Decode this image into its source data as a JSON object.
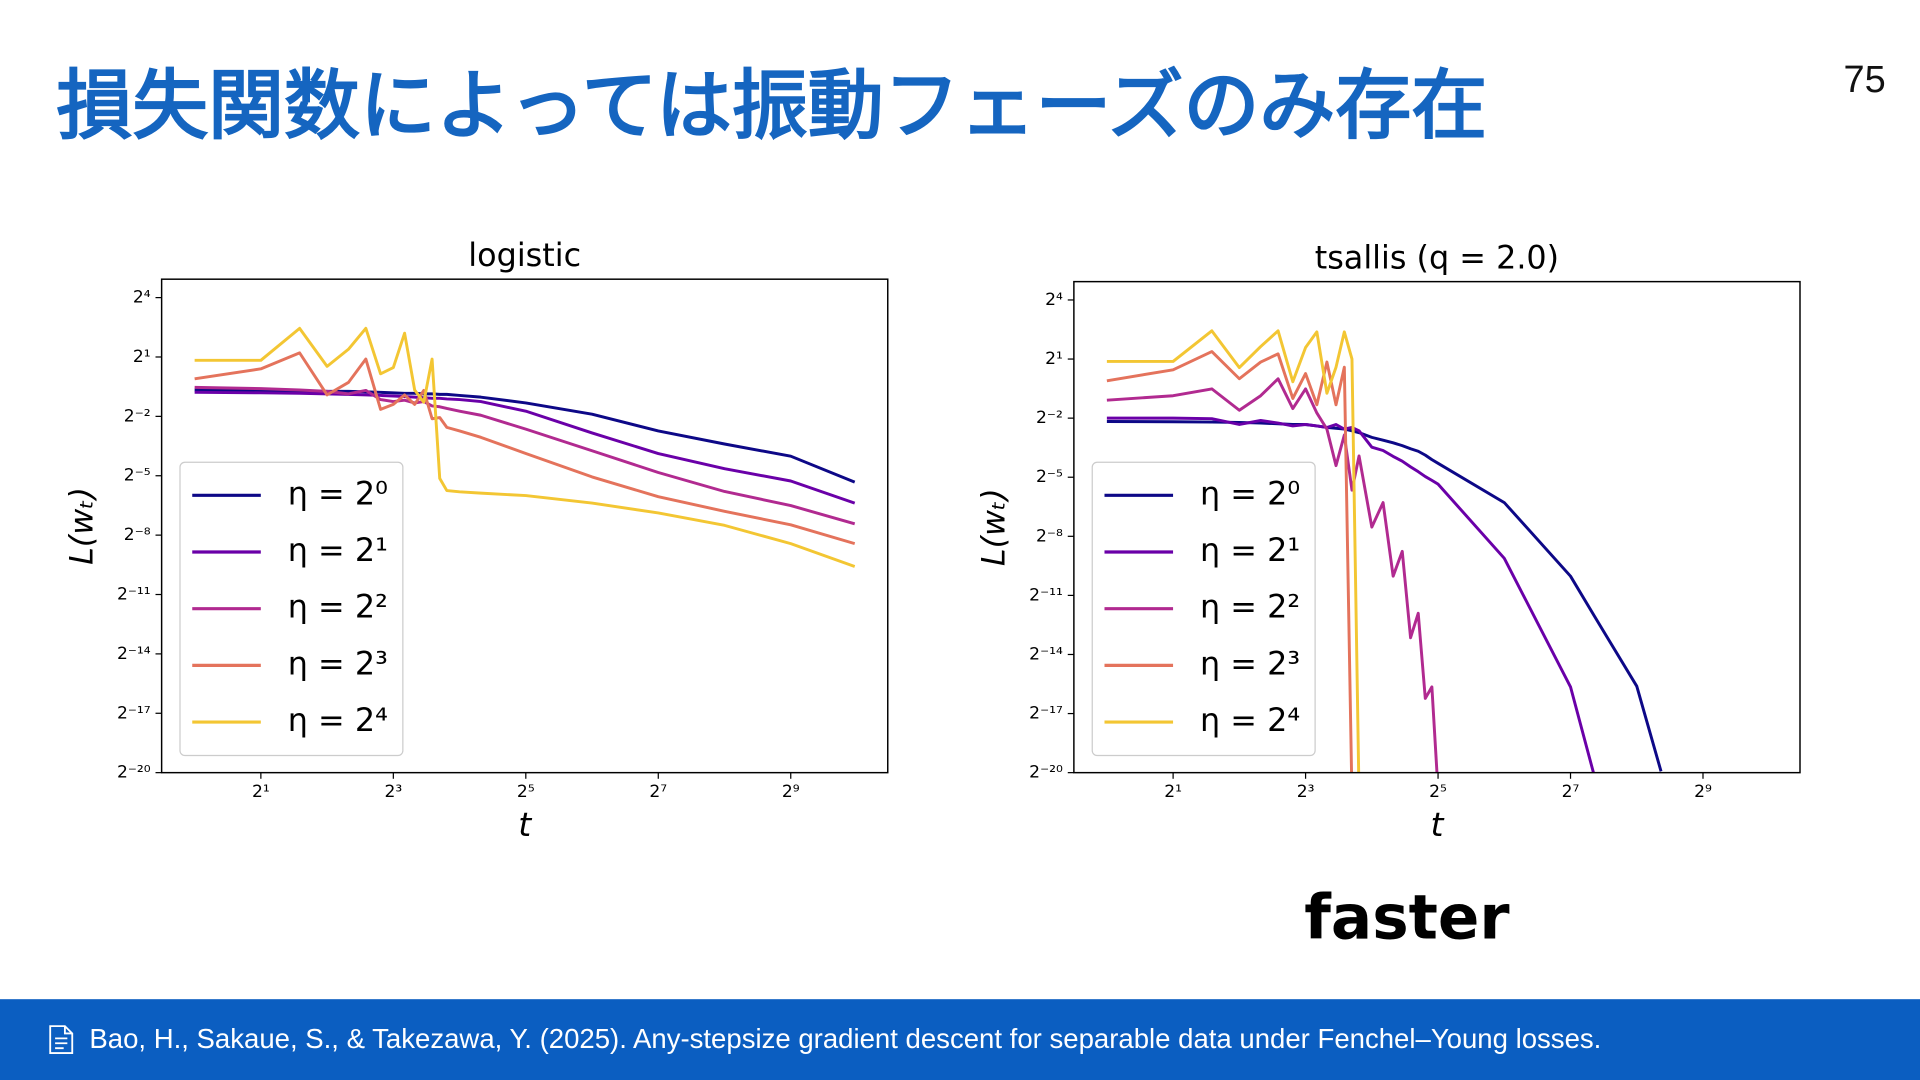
{
  "title": "損失関数によっては振動フェーズのみ存在",
  "page_number": 75,
  "annotation": "faster",
  "footer": "Bao, H., Sakaue, S., & Takezawa, Y. (2025). Any-stepsize gradient descent for separable data under Fenchel–Young losses.",
  "chart_data": [
    {
      "type": "line",
      "title": "logistic",
      "xlabel": "t",
      "ylabel": "L(wₜ)",
      "xscale": "log",
      "yscale": "log",
      "grid": false,
      "legend": "lower left",
      "xlim": [
        0.708,
        1413
      ],
      "ylim": [
        9.5367431640625e-07,
        30.5
      ],
      "xticks": [
        {
          "value": 2,
          "label": "2¹"
        },
        {
          "value": 8,
          "label": "2³"
        },
        {
          "value": 32,
          "label": "2⁵"
        },
        {
          "value": 128,
          "label": "2⁷"
        },
        {
          "value": 512,
          "label": "2⁹"
        }
      ],
      "yticks": [
        {
          "value": 16,
          "label": "2⁴"
        },
        {
          "value": 2,
          "label": "2¹"
        },
        {
          "value": 0.25,
          "label": "2⁻²"
        },
        {
          "value": 0.03125,
          "label": "2⁻⁵"
        },
        {
          "value": 0.00390625,
          "label": "2⁻⁸"
        },
        {
          "value": 0.00048828125,
          "label": "2⁻¹¹"
        },
        {
          "value": 6.103515625e-05,
          "label": "2⁻¹⁴"
        },
        {
          "value": 7.62939453125e-06,
          "label": "2⁻¹⁷"
        },
        {
          "value": 9.5367431640625e-07,
          "label": "2⁻²⁰"
        }
      ],
      "x": [
        1,
        2,
        3,
        4,
        5,
        6,
        7,
        8,
        9,
        10,
        11,
        12,
        13,
        14,
        16,
        20,
        32,
        64,
        128,
        256,
        512,
        1000
      ],
      "series": [
        {
          "name": "η = 2⁰",
          "color": "#0d0887",
          "values": [
            0.63,
            0.62,
            0.61,
            0.6,
            0.6,
            0.59,
            0.58,
            0.57,
            0.56,
            0.56,
            0.55,
            0.55,
            0.54,
            0.54,
            0.52,
            0.49,
            0.4,
            0.27,
            0.15,
            0.095,
            0.062,
            0.025
          ]
        },
        {
          "name": "η = 2¹",
          "color": "#6a00a8",
          "values": [
            0.58,
            0.57,
            0.56,
            0.55,
            0.54,
            0.53,
            0.52,
            0.51,
            0.5,
            0.49,
            0.48,
            0.47,
            0.47,
            0.46,
            0.45,
            0.42,
            0.3,
            0.14,
            0.068,
            0.04,
            0.026,
            0.012
          ]
        },
        {
          "name": "η = 2²",
          "color": "#b12a90",
          "values": [
            0.69,
            0.66,
            0.63,
            0.6,
            0.55,
            0.62,
            0.45,
            0.42,
            0.44,
            0.4,
            0.42,
            0.36,
            0.35,
            0.33,
            0.3,
            0.26,
            0.16,
            0.075,
            0.035,
            0.018,
            0.011,
            0.0058
          ]
        },
        {
          "name": "η = 2³",
          "color": "#e4735c",
          "values": [
            0.93,
            1.32,
            2.31,
            0.53,
            0.82,
            1.86,
            0.32,
            0.38,
            0.53,
            0.38,
            0.62,
            0.23,
            0.24,
            0.17,
            0.15,
            0.12,
            0.068,
            0.03,
            0.015,
            0.009,
            0.0056,
            0.0029
          ]
        },
        {
          "name": "η = 2⁴",
          "color": "#f3c633",
          "values": [
            1.78,
            1.78,
            5.45,
            1.44,
            2.62,
            5.45,
            1.11,
            1.38,
            4.6,
            0.63,
            0.41,
            1.86,
            0.0285,
            0.0186,
            0.0178,
            0.017,
            0.0156,
            0.012,
            0.0085,
            0.0055,
            0.0029,
            0.0013
          ]
        }
      ]
    },
    {
      "type": "line",
      "title": "tsallis (q = 2.0)",
      "xlabel": "t",
      "ylabel": "L(wₜ)",
      "xscale": "log",
      "yscale": "log",
      "grid": false,
      "legend": "lower left",
      "xlim": [
        0.708,
        1413
      ],
      "ylim": [
        9.5367431640625e-07,
        30.5
      ],
      "xticks": [
        {
          "value": 2,
          "label": "2¹"
        },
        {
          "value": 8,
          "label": "2³"
        },
        {
          "value": 32,
          "label": "2⁵"
        },
        {
          "value": 128,
          "label": "2⁷"
        },
        {
          "value": 512,
          "label": "2⁹"
        }
      ],
      "yticks": [
        {
          "value": 16,
          "label": "2⁴"
        },
        {
          "value": 2,
          "label": "2¹"
        },
        {
          "value": 0.25,
          "label": "2⁻²"
        },
        {
          "value": 0.03125,
          "label": "2⁻⁵"
        },
        {
          "value": 0.00390625,
          "label": "2⁻⁸"
        },
        {
          "value": 0.00048828125,
          "label": "2⁻¹¹"
        },
        {
          "value": 6.103515625e-05,
          "label": "2⁻¹⁴"
        },
        {
          "value": 7.62939453125e-06,
          "label": "2⁻¹⁷"
        },
        {
          "value": 9.5367431640625e-07,
          "label": "2⁻²⁰"
        }
      ],
      "x": [
        1,
        2,
        3,
        4,
        5,
        6,
        7,
        8,
        9,
        10,
        11,
        12,
        13,
        14,
        16,
        18,
        20,
        22,
        24,
        26,
        28,
        30,
        32,
        64,
        128,
        165,
        256,
        330
      ],
      "series": [
        {
          "name": "η = 2⁰",
          "color": "#0d0887",
          "values": [
            0.222,
            0.22,
            0.218,
            0.215,
            0.21,
            0.205,
            0.2,
            0.2,
            0.19,
            0.18,
            0.175,
            0.17,
            0.16,
            0.15,
            0.127,
            0.115,
            0.105,
            0.095,
            0.085,
            0.078,
            0.068,
            0.058,
            0.051,
            0.0128,
            0.00096,
            0.00023,
            2e-05,
            1e-06
          ]
        },
        {
          "name": "η = 2¹",
          "color": "#6a00a8",
          "values": [
            0.25,
            0.25,
            0.245,
            0.2,
            0.23,
            0.21,
            0.19,
            0.2,
            0.19,
            0.18,
            0.2,
            0.17,
            0.18,
            0.16,
            0.09,
            0.08,
            0.065,
            0.055,
            0.045,
            0.038,
            0.032,
            0.028,
            0.0245,
            0.0018,
            1.95e-05,
            8e-07,
            null,
            null
          ]
        },
        {
          "name": "η = 2²",
          "color": "#b12a90",
          "values": [
            0.47,
            0.55,
            0.7,
            0.33,
            0.55,
            1.0,
            0.35,
            0.7,
            0.3,
            0.17,
            0.047,
            0.138,
            0.0198,
            0.066,
            0.0054,
            0.0128,
            0.00096,
            0.0023,
            0.00011,
            0.00026,
            1.3e-05,
            1.95e-05,
            5e-07,
            null,
            null,
            null,
            null,
            null
          ]
        },
        {
          "name": "η = 2³",
          "color": "#e4735c",
          "values": [
            0.93,
            1.37,
            2.6,
            1.0,
            1.8,
            2.4,
            0.5,
            1.2,
            0.4,
            1.8,
            0.4,
            1.5,
            0,
            null,
            null,
            null,
            null,
            null,
            null,
            null,
            null,
            null,
            null,
            null,
            null,
            null,
            null,
            null
          ]
        },
        {
          "name": "η = 2⁴",
          "color": "#f3c633",
          "values": [
            1.84,
            1.84,
            5.4,
            1.48,
            3.1,
            5.4,
            0.9,
            3,
            5.2,
            0.6,
            1.5,
            5.2,
            2,
            0,
            null,
            null,
            null,
            null,
            null,
            null,
            null,
            null,
            null,
            null,
            null,
            null,
            null,
            null
          ]
        }
      ]
    }
  ]
}
